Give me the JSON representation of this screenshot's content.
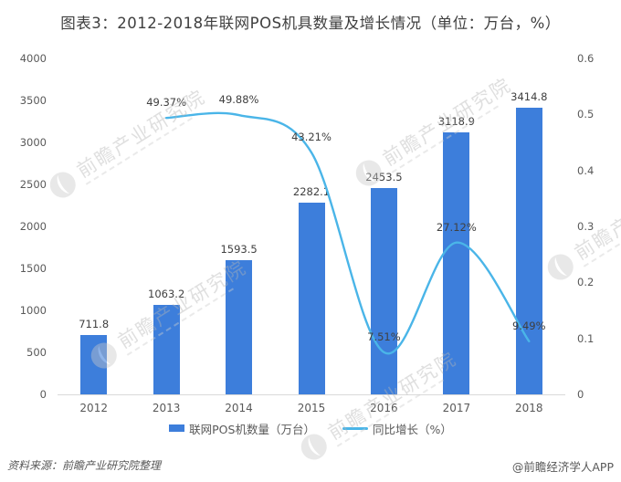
{
  "title": "图表3：2012-2018年联网POS机具数量及增长情况（单位：万台，%）",
  "chart_data": {
    "type": "combo-bar-line",
    "categories": [
      "2012",
      "2013",
      "2014",
      "2015",
      "2016",
      "2017",
      "2018"
    ],
    "series": [
      {
        "name": "联网POS机数量（万台）",
        "type": "bar",
        "axis": "left",
        "color": "#3d7edb",
        "values": [
          711.8,
          1063.2,
          1593.5,
          2282.1,
          2453.5,
          3118.9,
          3414.8
        ],
        "labels": [
          "711.8",
          "1063.2",
          "1593.5",
          "2282.1",
          "2453.5",
          "3118.9",
          "3414.8"
        ]
      },
      {
        "name": "同比增长（%）",
        "type": "line",
        "axis": "right",
        "color": "#4ab5e8",
        "values": [
          null,
          49.37,
          49.88,
          43.21,
          7.51,
          27.12,
          9.49
        ],
        "labels": [
          "",
          "49.37%",
          "49.88%",
          "43.21%",
          "7.51%",
          "27.12%",
          "9.49%"
        ]
      }
    ],
    "left_axis": {
      "min": 0,
      "max": 4000,
      "step": 500,
      "tick_labels": [
        "0",
        "500",
        "1000",
        "1500",
        "2000",
        "2500",
        "3000",
        "3500",
        "4000"
      ]
    },
    "right_axis": {
      "min": 0,
      "max": 0.6,
      "step": 0.1,
      "tick_labels": [
        "0",
        "0.1",
        "0.2",
        "0.3",
        "0.4",
        "0.5",
        "0.6"
      ]
    },
    "grid": false,
    "legend_position": "bottom"
  },
  "footer": {
    "source": "资料来源：前瞻产业研究院整理",
    "credit": "@前瞻经济学人APP"
  },
  "watermark": {
    "text": "前瞻产业研究院"
  }
}
